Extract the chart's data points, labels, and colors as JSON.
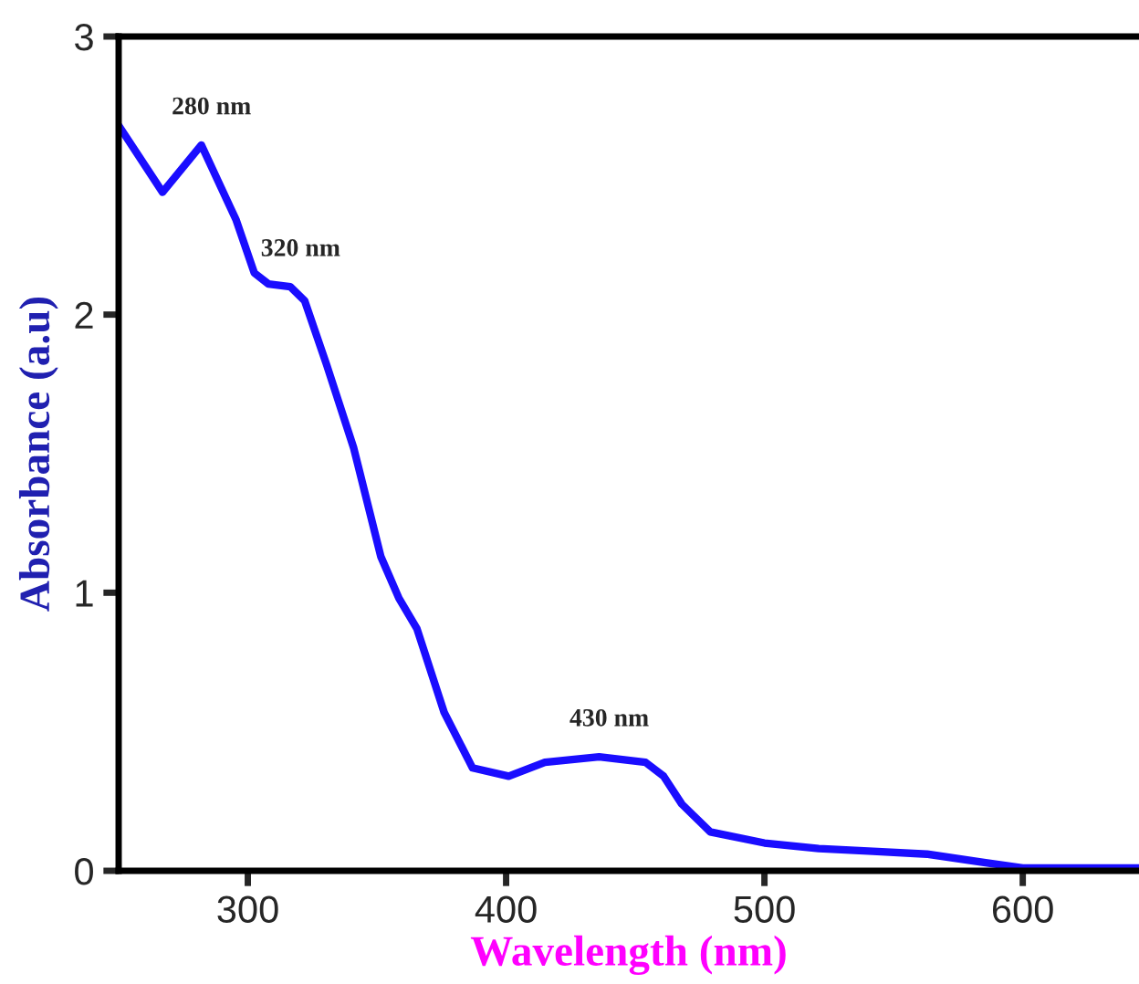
{
  "chart_data": {
    "type": "line",
    "xlabel": "Wavelength (nm)",
    "ylabel": "Absorbance (a.u)",
    "x": [
      250,
      267,
      282,
      295.5,
      302.5,
      308,
      316.5,
      322,
      330.5,
      341,
      351.5,
      358.5,
      365.5,
      376,
      387,
      401,
      415,
      436,
      454,
      461,
      468,
      479,
      500,
      521,
      542,
      563,
      585,
      600,
      645
    ],
    "series": [
      {
        "color": "#1a0dff",
        "values": [
          2.68,
          2.44,
          2.61,
          2.34,
          2.15,
          2.11,
          2.1,
          2.05,
          1.82,
          1.52,
          1.13,
          0.98,
          0.87,
          0.57,
          0.37,
          0.34,
          0.39,
          0.41,
          0.39,
          0.34,
          0.24,
          0.14,
          0.1,
          0.08,
          0.07,
          0.06,
          0.03,
          0.01,
          0.01
        ]
      }
    ],
    "annotations": [
      {
        "text": "280 nm",
        "x": 282,
        "y": 2.61
      },
      {
        "text": "320 nm",
        "x": 316.5,
        "y": 2.1
      },
      {
        "text": "430 nm",
        "x": 436,
        "y": 0.41
      }
    ],
    "xlim": [
      250,
      645
    ],
    "ylim": [
      0,
      3
    ],
    "xticks": [
      300,
      400,
      500,
      600
    ],
    "yticks": [
      0,
      1,
      2,
      3
    ],
    "grid": false,
    "legend": false,
    "marker": "none",
    "line_style": "solid"
  }
}
